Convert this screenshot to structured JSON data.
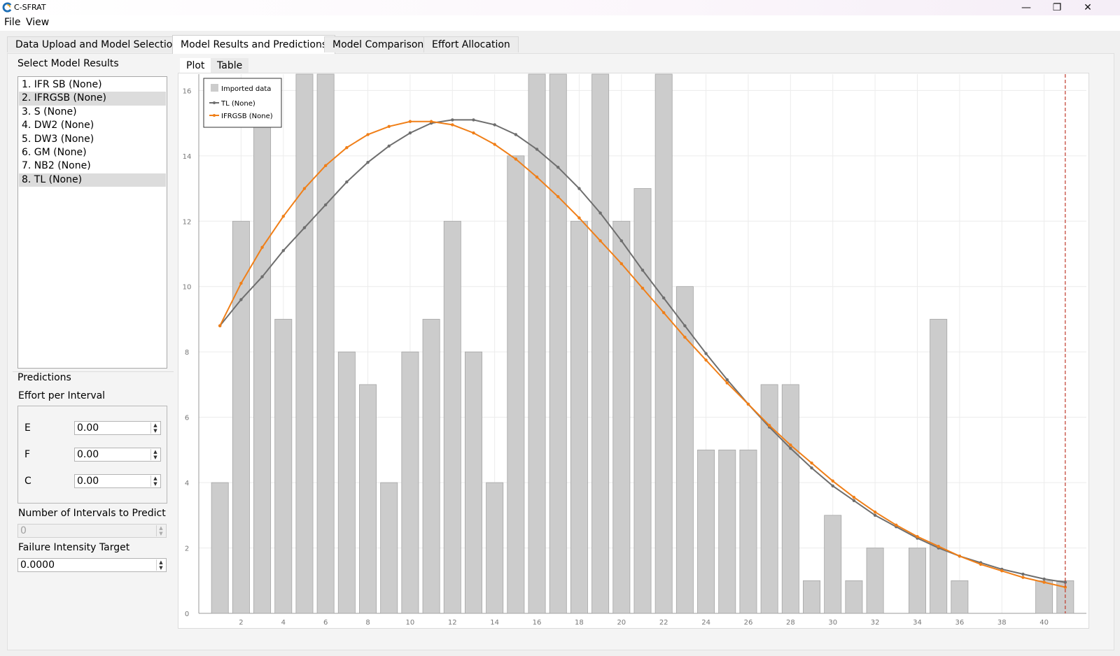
{
  "window": {
    "title": "C-SFRAT",
    "minimize_glyph": "—",
    "maximize_glyph": "❐",
    "close_glyph": "✕"
  },
  "menu": [
    "File",
    "View"
  ],
  "tabs": [
    {
      "label": "Data Upload and Model Selection",
      "active": false
    },
    {
      "label": "Model Results and Predictions",
      "active": true
    },
    {
      "label": "Model Comparison",
      "active": false
    },
    {
      "label": "Effort Allocation",
      "active": false
    }
  ],
  "left_panel": {
    "select_title": "Select Model Results",
    "models": [
      {
        "label": "1. IFR SB (None)",
        "selected": false
      },
      {
        "label": "2. IFRGSB (None)",
        "selected": true
      },
      {
        "label": "3. S (None)",
        "selected": false
      },
      {
        "label": "4. DW2 (None)",
        "selected": false
      },
      {
        "label": "5. DW3 (None)",
        "selected": false
      },
      {
        "label": "6. GM (None)",
        "selected": false
      },
      {
        "label": "7. NB2 (None)",
        "selected": false
      },
      {
        "label": "8. TL (None)",
        "selected": true
      }
    ],
    "predictions_title": "Predictions",
    "effort_title": "Effort per Interval",
    "effort_fields": [
      {
        "label": "E",
        "value": "0.00"
      },
      {
        "label": "F",
        "value": "0.00"
      },
      {
        "label": "C",
        "value": "0.00"
      }
    ],
    "intervals_label": "Number of Intervals to Predict",
    "intervals_value": "0",
    "intensity_label": "Failure Intensity Target",
    "intensity_value": "0.0000"
  },
  "subtabs": [
    {
      "label": "Plot",
      "active": true
    },
    {
      "label": "Table",
      "active": false
    }
  ],
  "chart_data": {
    "type": "bar",
    "title": "",
    "xlabel": "",
    "ylabel": "",
    "x": [
      1,
      2,
      3,
      4,
      5,
      6,
      7,
      8,
      9,
      10,
      11,
      12,
      13,
      14,
      15,
      16,
      17,
      18,
      19,
      20,
      21,
      22,
      23,
      24,
      25,
      26,
      27,
      28,
      29,
      30,
      31,
      32,
      33,
      34,
      35,
      36,
      37,
      38,
      39,
      40,
      41
    ],
    "bars": {
      "name": "Imported data",
      "values": [
        4,
        12,
        15,
        9,
        16.5,
        16.5,
        8,
        7,
        4,
        8,
        9,
        12,
        8,
        4,
        14,
        16.5,
        16.5,
        12,
        16.5,
        12,
        13,
        16.5,
        10,
        5,
        5,
        5,
        7,
        7,
        1,
        3,
        1,
        2,
        0,
        2,
        9,
        1,
        0,
        0,
        0,
        1,
        1
      ],
      "color": "#cccccc"
    },
    "series": [
      {
        "name": "TL (None)",
        "color": "#6e6e6e",
        "x": [
          1,
          2,
          3,
          4,
          5,
          6,
          7,
          8,
          9,
          10,
          11,
          12,
          13,
          14,
          15,
          16,
          17,
          18,
          19,
          20,
          21,
          22,
          23,
          24,
          25,
          26,
          27,
          28,
          29,
          30,
          31,
          32,
          33,
          34,
          35,
          36,
          37,
          38,
          39,
          40,
          41
        ],
        "values": [
          8.8,
          9.6,
          10.3,
          11.1,
          11.8,
          12.5,
          13.2,
          13.8,
          14.3,
          14.7,
          15.0,
          15.1,
          15.1,
          14.95,
          14.65,
          14.2,
          13.65,
          13.0,
          12.25,
          11.4,
          10.5,
          9.65,
          8.8,
          7.95,
          7.15,
          6.4,
          5.7,
          5.05,
          4.45,
          3.9,
          3.45,
          3.0,
          2.65,
          2.3,
          2.0,
          1.75,
          1.55,
          1.35,
          1.2,
          1.05,
          0.95
        ]
      },
      {
        "name": "IFRGSB (None)",
        "color": "#f07f18",
        "x": [
          1,
          2,
          3,
          4,
          5,
          6,
          7,
          8,
          9,
          10,
          11,
          12,
          13,
          14,
          15,
          16,
          17,
          18,
          19,
          20,
          21,
          22,
          23,
          24,
          25,
          26,
          27,
          28,
          29,
          30,
          31,
          32,
          33,
          34,
          35,
          36,
          37,
          38,
          39,
          40,
          41
        ],
        "values": [
          8.8,
          10.1,
          11.2,
          12.15,
          13.0,
          13.7,
          14.25,
          14.65,
          14.9,
          15.05,
          15.05,
          14.95,
          14.7,
          14.35,
          13.9,
          13.35,
          12.75,
          12.1,
          11.4,
          10.7,
          9.95,
          9.2,
          8.45,
          7.75,
          7.05,
          6.4,
          5.75,
          5.15,
          4.6,
          4.05,
          3.55,
          3.1,
          2.7,
          2.35,
          2.05,
          1.75,
          1.5,
          1.3,
          1.1,
          0.95,
          0.8
        ]
      }
    ],
    "xlim": [
      0,
      42
    ],
    "ylim": [
      0,
      16.5
    ],
    "x_ticks": [
      2,
      4,
      6,
      8,
      10,
      12,
      14,
      16,
      18,
      20,
      22,
      24,
      26,
      28,
      30,
      32,
      34,
      36,
      38,
      40
    ],
    "y_ticks": [
      0,
      2,
      4,
      6,
      8,
      10,
      12,
      14,
      16
    ],
    "vline_x": 41,
    "vline_color": "#c0392b",
    "grid": true,
    "legend_position": "top-left"
  }
}
